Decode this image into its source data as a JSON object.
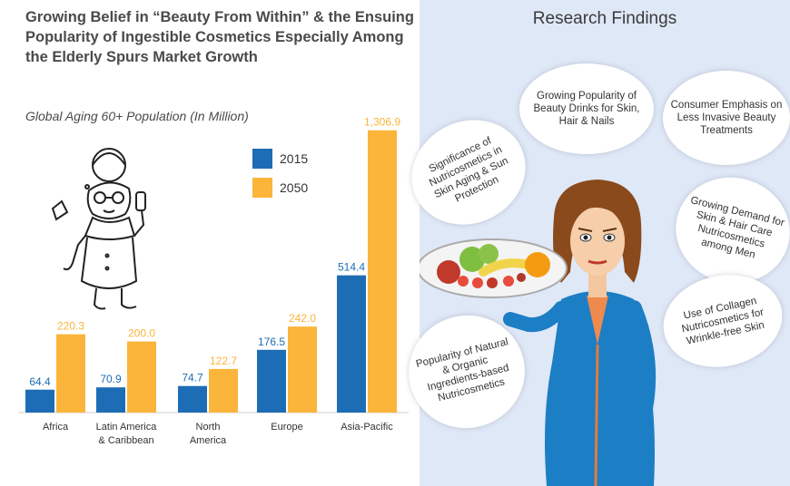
{
  "header": {
    "title": "Growing Belief in “Beauty From Within” & the Ensuing Popularity of Ingestible Cosmetics Especially Among the Elderly Spurs Market Growth",
    "subtitle": "Global Aging 60+ Population (In Million)"
  },
  "colors": {
    "2015": "#1d6db6",
    "2050": "#fbb53a"
  },
  "chart_data": {
    "type": "bar",
    "title": "Global Aging 60+ Population (In Million)",
    "categories": [
      "Africa",
      "Latin America & Caribbean",
      "North America",
      "Europe",
      "Asia-Pacific"
    ],
    "category_lines": [
      [
        "Africa"
      ],
      [
        "Latin America",
        "& Caribbean"
      ],
      [
        "North",
        "America"
      ],
      [
        "Europe"
      ],
      [
        "Asia-Pacific"
      ]
    ],
    "series": [
      {
        "name": "2015",
        "values": [
          64.4,
          70.9,
          74.7,
          176.5,
          514.4
        ],
        "labels": [
          "64.4",
          "70.9",
          "74.7",
          "176.5",
          "514.4"
        ]
      },
      {
        "name": "2050",
        "values": [
          220.3,
          200.0,
          122.7,
          242.0,
          1306.9
        ],
        "labels": [
          "220.3",
          "200.0",
          "122.7",
          "242.0",
          "1,306.9"
        ]
      }
    ],
    "legend": "top-right",
    "grid": false
  },
  "research": {
    "title": "Research Findings",
    "findings": [
      "Growing Popularity of Beauty Drinks for Skin, Hair & Nails",
      "Consumer Emphasis on Less Invasive Beauty Treatments",
      "Significance of Nutricosmetics in Skin Aging & Sun Protection",
      "Growing Demand for Skin & Hair Care Nutricosmetics among Men",
      "Use of Collagen Nutricosmetics for Wrinkle-free Skin",
      "Popularity of Natural & Organic Ingredients-based Nutricosmetics"
    ]
  }
}
